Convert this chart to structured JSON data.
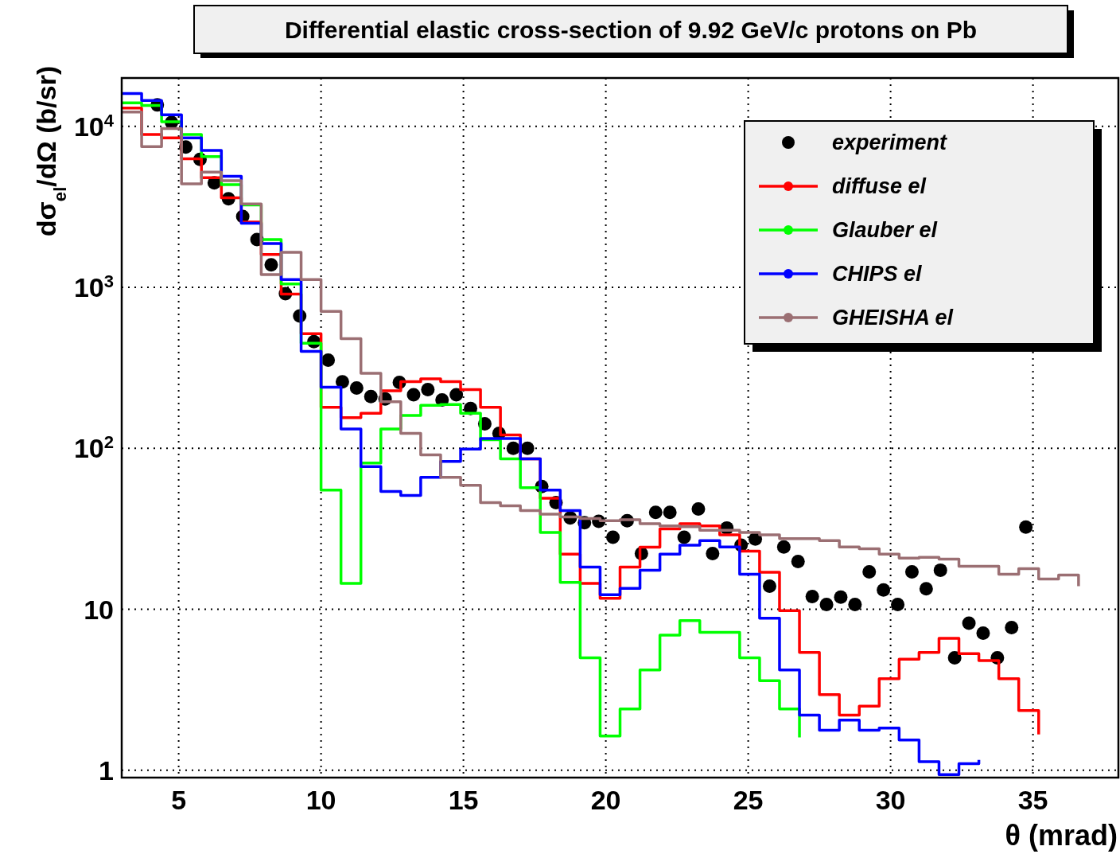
{
  "chart_data": {
    "type": "step",
    "title": "Differential elastic cross-section of 9.92 GeV/c protons on Pb",
    "xlabel": "θ (mrad)",
    "ylabel": "dσ$_{el}$/dΩ (b/sr)",
    "xlim": [
      3,
      38
    ],
    "xticks": [
      5,
      10,
      15,
      20,
      25,
      30,
      35
    ],
    "ylim": [
      0.9,
      20000
    ],
    "yticks": [
      1,
      10,
      {
        "value": 100,
        "label": "10$^{2}$"
      },
      {
        "value": 1000,
        "label": "10$^{3}$"
      },
      {
        "value": 10000,
        "label": "10$^{4}$"
      }
    ],
    "log": "y",
    "grid": true,
    "legend": "top right",
    "x": [
      3.0,
      3.7,
      4.4,
      5.1,
      5.8,
      6.5,
      7.2,
      7.9,
      8.6,
      9.3,
      10.0,
      10.7,
      11.4,
      12.1,
      12.8,
      13.5,
      14.2,
      14.9,
      15.6,
      16.3,
      17.0,
      17.7,
      18.4,
      19.1,
      19.8,
      20.5,
      21.2,
      21.9,
      22.6,
      23.3,
      24.0,
      24.7,
      25.4,
      26.1,
      26.8,
      27.5,
      28.2,
      28.9,
      29.6,
      30.3,
      31.0,
      31.7,
      32.4,
      33.1,
      33.8,
      34.5,
      35.2,
      35.9,
      36.6
    ],
    "series": [
      {
        "name": "experiment",
        "type": "scatter",
        "marker": "circle",
        "color": "#000000",
        "x": [
          4.25,
          4.75,
          5.25,
          5.75,
          6.25,
          6.75,
          7.25,
          7.75,
          8.25,
          8.75,
          9.25,
          9.75,
          10.25,
          10.75,
          11.25,
          11.75,
          12.25,
          12.75,
          13.25,
          13.75,
          14.25,
          14.75,
          15.25,
          15.75,
          16.25,
          16.75,
          17.25,
          17.75,
          18.25,
          18.75,
          19.25,
          19.75,
          20.25,
          20.75,
          21.25,
          21.75,
          22.25,
          22.75,
          23.25,
          23.75,
          24.25,
          24.75,
          25.25,
          25.75,
          26.25,
          26.75,
          27.25,
          27.75,
          28.25,
          28.75,
          29.25,
          29.75,
          30.25,
          30.75,
          31.25,
          31.75,
          32.25,
          32.75,
          33.25,
          33.75,
          34.25,
          34.75
        ],
        "values": [
          13600,
          10600,
          7450,
          6250,
          4460,
          3550,
          2760,
          1980,
          1380,
          915,
          665,
          460,
          353,
          259,
          237,
          210,
          203,
          257,
          215,
          232,
          200,
          215,
          177,
          142,
          124,
          100,
          100,
          58,
          46,
          37,
          34.5,
          35.2,
          28,
          35.5,
          22.2,
          40,
          40,
          28,
          42,
          22.2,
          32,
          25,
          27.3,
          13.9,
          24.4,
          19.8,
          12,
          10.7,
          11.9,
          10.7,
          17.1,
          13.2,
          10.7,
          17.1,
          13.4,
          17.5,
          5.0,
          8.2,
          7.1,
          5.0,
          7.7,
          32.4
        ]
      },
      {
        "name": "diffuse el",
        "color": "#ff0000",
        "values": [
          13000,
          8900,
          8500,
          6300,
          4800,
          3600,
          2550,
          1600,
          910,
          515,
          180,
          155,
          165,
          228,
          260,
          270,
          260,
          232,
          180,
          121,
          86,
          49,
          22,
          14.5,
          11.7,
          18.3,
          24.3,
          31.6,
          34,
          33,
          29,
          23,
          17,
          9.8,
          5.4,
          2.95,
          2.2,
          2.5,
          3.7,
          4.9,
          5.4,
          6.6,
          5.3,
          4.8,
          3.7,
          2.35,
          1.67,
          null,
          null
        ]
      },
      {
        "name": "Glauber el",
        "color": "#00ff00",
        "values": [
          14000,
          13500,
          10700,
          8900,
          6500,
          4350,
          3250,
          1980,
          1050,
          450,
          55,
          14.5,
          81,
          132,
          160,
          185,
          187,
          165,
          113,
          86,
          57,
          30,
          14.7,
          5.0,
          1.63,
          2.4,
          4.2,
          6.9,
          8.5,
          7.2,
          7.2,
          5.0,
          3.6,
          2.4,
          1.6,
          null,
          null,
          null,
          null,
          null,
          null,
          null,
          null,
          null,
          null,
          null,
          null,
          null,
          null
        ]
      },
      {
        "name": "CHIPS el",
        "color": "#0000ff",
        "values": [
          16000,
          14500,
          11800,
          8500,
          7100,
          4900,
          2500,
          1870,
          1120,
          400,
          240,
          132,
          77,
          54,
          51,
          66,
          83,
          99,
          115,
          115,
          86,
          55,
          41,
          18.3,
          12.3,
          13.5,
          17.5,
          22,
          25,
          26.7,
          24.4,
          16.5,
          8.8,
          4.2,
          2.2,
          1.77,
          2.05,
          1.77,
          1.83,
          1.54,
          1.13,
          0.94,
          1.1,
          1.16,
          null,
          null,
          null,
          null,
          null
        ]
      },
      {
        "name": "GHEISHA el",
        "color": "#9b6f73",
        "values": [
          12300,
          7500,
          9700,
          4400,
          5200,
          4600,
          3300,
          1200,
          1650,
          1120,
          710,
          480,
          293,
          195,
          124,
          91,
          66,
          59,
          46,
          44,
          41,
          39,
          37.5,
          36.6,
          35.5,
          36,
          34,
          33,
          32.6,
          31,
          31,
          30,
          29,
          27.5,
          27.5,
          26.7,
          24.4,
          23.8,
          22,
          20.8,
          21,
          20.5,
          18.5,
          18.5,
          16.5,
          17.9,
          15.4,
          16.3,
          13.9
        ]
      }
    ]
  }
}
